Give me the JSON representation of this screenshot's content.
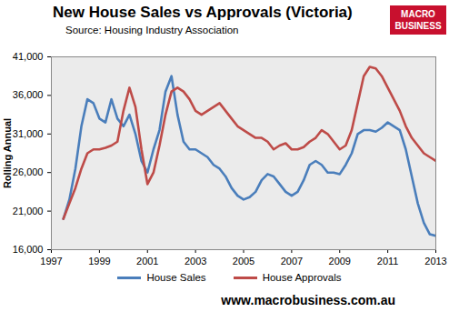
{
  "chart_data": {
    "type": "line",
    "title": "New House Sales vs Approvals (Victoria)",
    "subtitle": "Source: Housing Industry Association",
    "annotations": [
      "MACRO BUSINESS"
    ],
    "caption": "www.macrobusiness.com.au",
    "y_label": "Rolling Annual",
    "legend": "bottom",
    "grid": false,
    "x": [
      1997.5,
      1997.75,
      1998,
      1998.25,
      1998.5,
      1998.75,
      1999,
      1999.25,
      1999.5,
      1999.75,
      2000,
      2000.25,
      2000.5,
      2000.75,
      2001,
      2001.25,
      2001.5,
      2001.75,
      2002,
      2002.25,
      2002.5,
      2002.75,
      2003,
      2003.25,
      2003.5,
      2003.75,
      2004,
      2004.25,
      2004.5,
      2004.75,
      2005,
      2005.25,
      2005.5,
      2005.75,
      2006,
      2006.25,
      2006.5,
      2006.75,
      2007,
      2007.25,
      2007.5,
      2007.75,
      2008,
      2008.25,
      2008.5,
      2008.75,
      2009,
      2009.25,
      2009.5,
      2009.75,
      2010,
      2010.25,
      2010.5,
      2010.75,
      2011,
      2011.25,
      2011.5,
      2011.75,
      2012,
      2012.25,
      2012.5,
      2012.75,
      2013
    ],
    "xlim": [
      1997,
      2013
    ],
    "xticks": [
      1997,
      1999,
      2001,
      2003,
      2005,
      2007,
      2009,
      2011,
      2013
    ],
    "ylim": [
      16000,
      41000
    ],
    "yticks": [
      {
        "value": 16000,
        "label": "16,000"
      },
      {
        "value": 21000,
        "label": "21,000"
      },
      {
        "value": 26000,
        "label": "26,000"
      },
      {
        "value": 31000,
        "label": "31,000"
      },
      {
        "value": 36000,
        "label": "36,000"
      },
      {
        "value": 41000,
        "label": "41,000"
      }
    ],
    "series": [
      {
        "name": "House Sales",
        "color": "#4a7ebb",
        "values": [
          20000,
          22500,
          26500,
          32000,
          35500,
          35000,
          33000,
          32500,
          35500,
          33000,
          32000,
          33500,
          31000,
          27500,
          26000,
          29000,
          31500,
          36500,
          38500,
          33500,
          30000,
          29000,
          29000,
          28500,
          28000,
          27000,
          26500,
          25500,
          24000,
          23000,
          22500,
          22800,
          23500,
          25000,
          25800,
          25500,
          24500,
          23500,
          23000,
          23500,
          25000,
          27000,
          27500,
          27000,
          26000,
          26000,
          25800,
          27000,
          28500,
          31000,
          31500,
          31500,
          31300,
          31800,
          32500,
          32000,
          31500,
          29000,
          25500,
          22000,
          19500,
          18000,
          17800
        ]
      },
      {
        "name": "House Approvals",
        "color": "#be4b48",
        "values": [
          20000,
          22000,
          24000,
          26500,
          28500,
          29000,
          29000,
          29200,
          29500,
          30000,
          34000,
          37000,
          34500,
          29000,
          24500,
          26000,
          29500,
          33500,
          36500,
          37000,
          36500,
          35500,
          34000,
          33500,
          34000,
          34500,
          35000,
          34000,
          33000,
          32000,
          31500,
          31000,
          30500,
          30500,
          30000,
          29000,
          29500,
          29800,
          29000,
          29000,
          29300,
          30000,
          30500,
          31500,
          31000,
          30000,
          29000,
          29500,
          31500,
          35000,
          38500,
          39700,
          39500,
          38500,
          37000,
          35500,
          34000,
          32000,
          30500,
          29500,
          28500,
          28000,
          27500
        ]
      }
    ]
  }
}
